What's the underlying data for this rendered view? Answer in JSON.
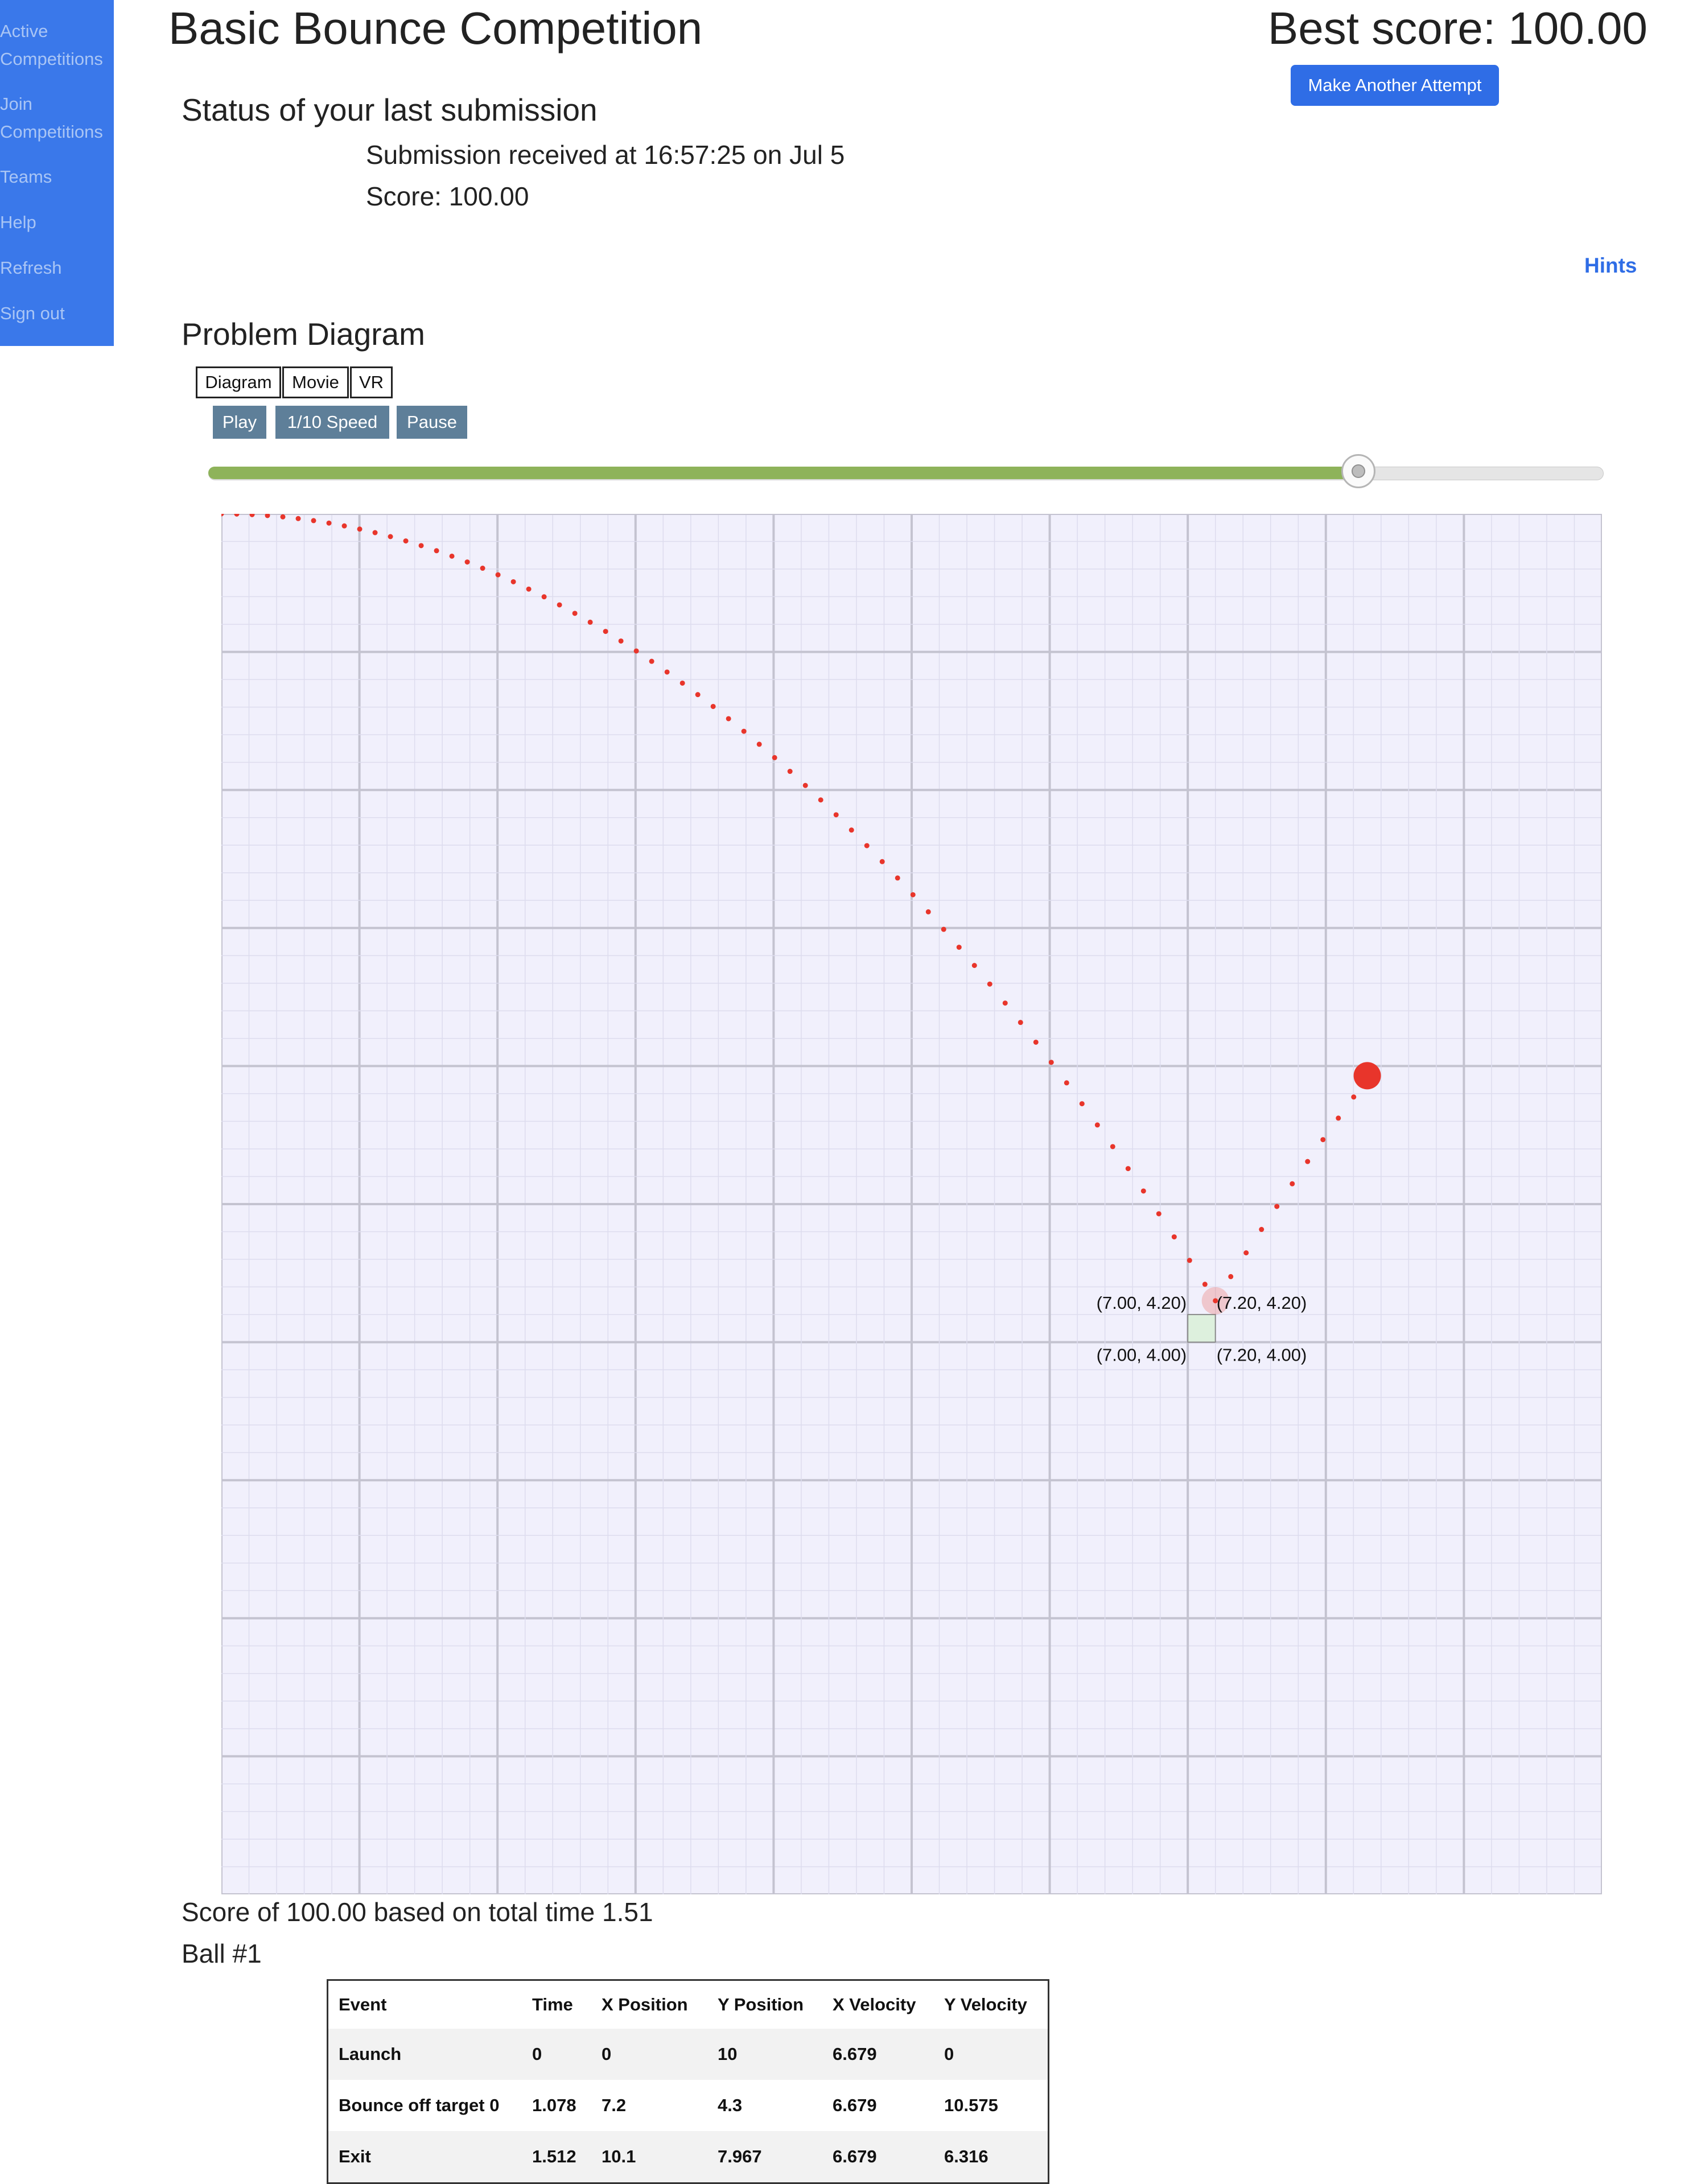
{
  "sidebar": {
    "items": [
      {
        "label_line1": "Active",
        "label_line2": "Competitions"
      },
      {
        "label_line1": "Join",
        "label_line2": "Competitions"
      },
      {
        "label_line1": "Teams"
      },
      {
        "label_line1": "Help"
      },
      {
        "label_line1": "Refresh"
      },
      {
        "label_line1": "Sign out"
      }
    ]
  },
  "header": {
    "title": "Basic Bounce Competition",
    "best_score": "Best score: 100.00",
    "attempt_button": "Make Another Attempt"
  },
  "submission": {
    "heading": "Status of your last submission",
    "received": "Submission received at 16:57:25 on Jul 5",
    "score": "Score: 100.00"
  },
  "hints_link": "Hints",
  "diagram_section": {
    "heading": "Problem Diagram",
    "view_tabs": [
      "Diagram",
      "Movie",
      "VR"
    ],
    "controls": {
      "play": "Play",
      "slow": "1/10 Speed",
      "pause": "Pause"
    },
    "timeline_progress": 0.825
  },
  "plot": {
    "x_range": [
      0,
      10
    ],
    "y_range": [
      0,
      10
    ],
    "target": {
      "x1": 7.0,
      "x2": 7.2,
      "y1": 4.0,
      "y2": 4.2
    },
    "corner_labels": {
      "top_left": "(7.00, 4.20)",
      "top_right": "(7.20, 4.20)",
      "bottom_left": "(7.00, 4.00)",
      "bottom_right": "(7.20, 4.00)"
    },
    "ball_color": "#e8352b",
    "target_color": "#ddf0dd",
    "grid_bg": "#f1f0fc",
    "current_ball": {
      "x": 8.3,
      "y": 5.93
    },
    "bounce_flash": {
      "x": 7.2,
      "y": 4.3
    }
  },
  "results": {
    "summary": "Score of 100.00 based on total time 1.51",
    "ball_heading": "Ball #1",
    "columns": [
      "Event",
      "Time",
      "X Position",
      "Y Position",
      "X Velocity",
      "Y Velocity"
    ],
    "rows": [
      [
        "Launch",
        "0",
        "0",
        "10",
        "6.679",
        "0"
      ],
      [
        "Bounce off target 0",
        "1.078",
        "7.2",
        "4.3",
        "6.679",
        "10.575"
      ],
      [
        "Exit",
        "1.512",
        "10.1",
        "7.967",
        "6.679",
        "6.316"
      ]
    ]
  }
}
